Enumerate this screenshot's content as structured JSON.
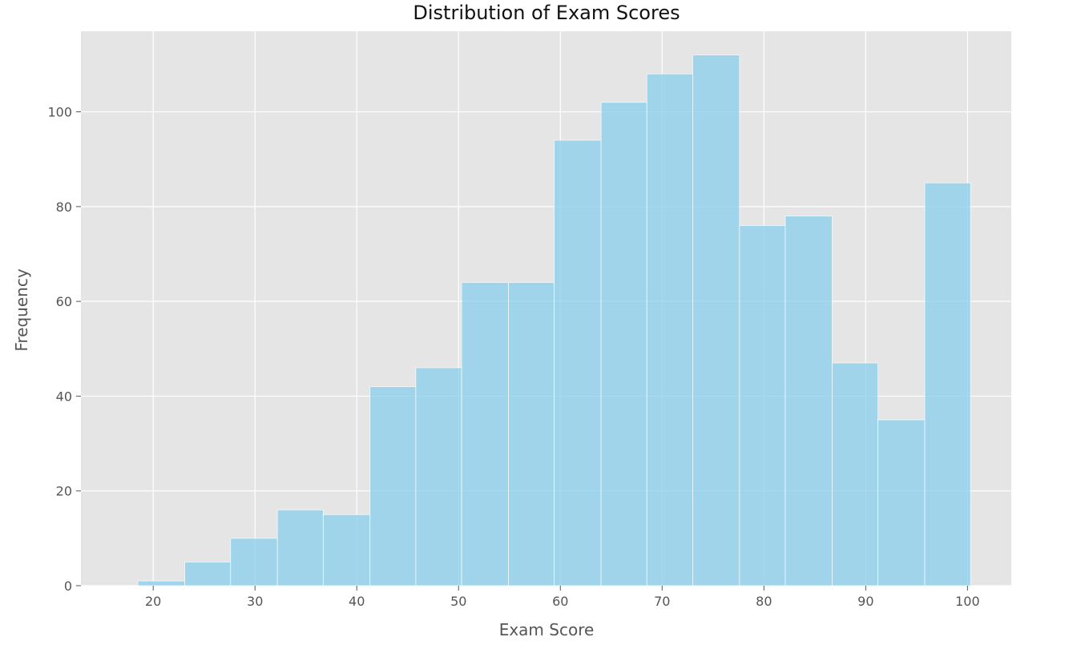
{
  "chart_data": {
    "type": "bar",
    "title": "Distribution of Exam Scores",
    "xlabel": "Exam Score",
    "ylabel": "Frequency",
    "bin_edges": [
      18.5,
      23.1,
      27.6,
      32.2,
      36.7,
      41.3,
      45.8,
      50.3,
      54.9,
      59.4,
      64.0,
      68.5,
      73.0,
      77.6,
      82.1,
      86.7,
      91.2,
      95.8,
      100.3
    ],
    "values": [
      1,
      5,
      10,
      16,
      15,
      42,
      46,
      64,
      64,
      94,
      102,
      108,
      112,
      76,
      78,
      47,
      35,
      85
    ],
    "xlim": [
      12.9,
      104.3
    ],
    "ylim": [
      0,
      117
    ],
    "xticks": [
      20,
      30,
      40,
      50,
      60,
      70,
      80,
      90,
      100
    ],
    "yticks": [
      0,
      20,
      40,
      60,
      80,
      100
    ],
    "grid": true,
    "bar_color": "#87CEEB",
    "background_color": "#E5E5E5",
    "grid_color": "#FFFFFF"
  }
}
